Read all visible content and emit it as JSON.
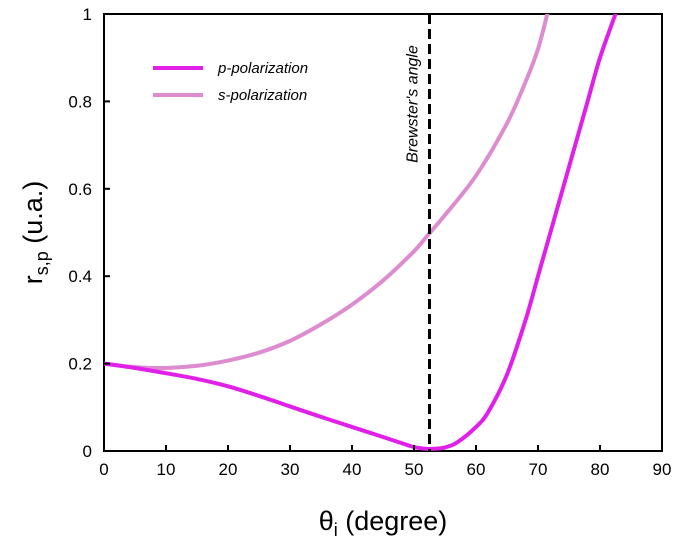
{
  "chart_data": {
    "type": "line",
    "xlabel": "θ",
    "xlabel_sub": "i",
    "xlabel_rest": " (degree)",
    "ylabel": "r",
    "ylabel_sub": "s,p",
    "ylabel_rest": " (u.a.)",
    "xlim": [
      0,
      90
    ],
    "ylim": [
      0,
      1
    ],
    "xticks": [
      "0",
      "10",
      "20",
      "30",
      "40",
      "50",
      "60",
      "70",
      "80",
      "90"
    ],
    "yticks": [
      "0",
      "0.2",
      "0.4",
      "0.6",
      "0.8",
      "1"
    ],
    "grid": false,
    "legend_position": "top-left",
    "series": [
      {
        "name": "p-polarization",
        "color": "#e020e8",
        "x": [
          0,
          5,
          10,
          15,
          20,
          25,
          30,
          35,
          40,
          45,
          48,
          50,
          52,
          53,
          55,
          57,
          60,
          62,
          65,
          68,
          70,
          72,
          75,
          78,
          80,
          82.5
        ],
        "y": [
          0.2,
          0.19,
          0.178,
          0.165,
          0.148,
          0.126,
          0.102,
          0.078,
          0.055,
          0.032,
          0.018,
          0.009,
          0.005,
          0.005,
          0.008,
          0.02,
          0.055,
          0.09,
          0.175,
          0.3,
          0.4,
          0.5,
          0.65,
          0.8,
          0.9,
          1.0
        ]
      },
      {
        "name": "s-polarization",
        "color": "#dd8cd0",
        "x": [
          0,
          5,
          10,
          15,
          20,
          25,
          30,
          35,
          40,
          45,
          50,
          52,
          55,
          60,
          65,
          68,
          70,
          71.5
        ],
        "y": [
          0.2,
          0.192,
          0.19,
          0.195,
          0.207,
          0.225,
          0.252,
          0.29,
          0.335,
          0.39,
          0.457,
          0.49,
          0.54,
          0.63,
          0.75,
          0.845,
          0.92,
          1.0
        ]
      }
    ],
    "vline": {
      "x": 52.5,
      "label": "Brewster's angle",
      "color": "#000000"
    }
  }
}
